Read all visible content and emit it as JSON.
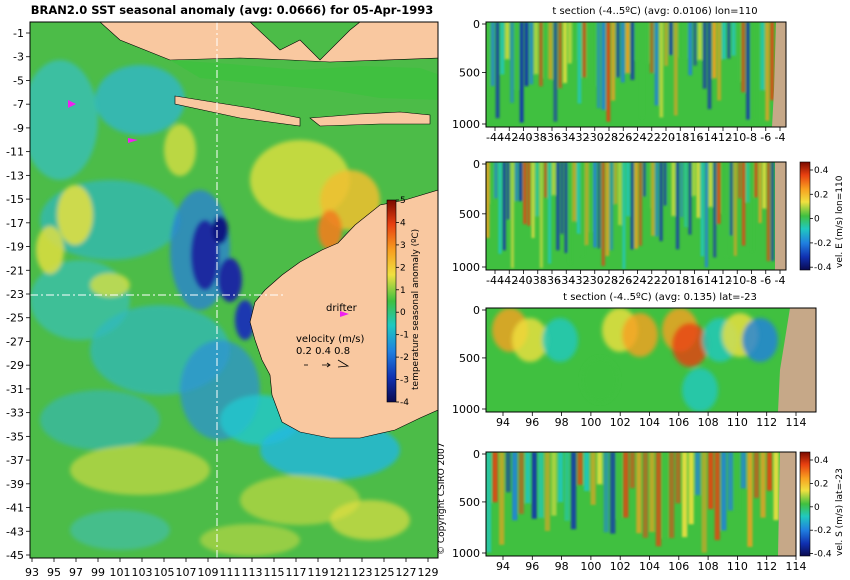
{
  "colors": {
    "land": "#f9c8a0",
    "seabed": "#c6a888",
    "background": "#ffffff"
  },
  "chart_data": [
    {
      "type": "heatmap",
      "title": "BRAN2.0 SST seasonal anomaly (avg: 0.0666) for 05-Apr-1993",
      "ylim": [
        -45,
        0
      ],
      "xlim": [
        93,
        130
      ],
      "y_ticks": [
        "-1",
        "-3",
        "-5",
        "-7",
        "-9",
        "-11",
        "-13",
        "-15",
        "-17",
        "-19",
        "-21",
        "-23",
        "-25",
        "-27",
        "-29",
        "-31",
        "-33",
        "-35",
        "-37",
        "-39",
        "-41",
        "-43",
        "-45"
      ],
      "x_ticks": [
        "93",
        "95",
        "97",
        "99",
        "101",
        "103",
        "105",
        "107",
        "109",
        "111",
        "113",
        "115",
        "117",
        "119",
        "121",
        "123",
        "125",
        "127",
        "129"
      ],
      "colorbar": {
        "label": "temperature seasonal anomaly (ºC)",
        "range": [
          -4,
          5
        ],
        "ticks": [
          "5",
          "4",
          "3",
          "2",
          "1",
          "0",
          "-1",
          "-2",
          "-3",
          "-4"
        ]
      },
      "annotations": {
        "drifter": "drifter",
        "velocity_label": "velocity (m/s)",
        "velocity_scale": "0.2 0.4 0.8",
        "copyright": "© Copyright CSIRO 2007"
      },
      "section_lines": {
        "lon": 110,
        "lat": -23
      }
    },
    {
      "type": "heatmap",
      "title": "t section (-4..5ºC) (avg: 0.0106) lon=110",
      "xlabel": "",
      "ylabel": "",
      "x_ticks": [
        "-44",
        "-42",
        "-40",
        "-38",
        "-36",
        "-34",
        "-32",
        "-30",
        "-28",
        "-26",
        "-24",
        "-22",
        "-20",
        "-18",
        "-16",
        "-14",
        "-12",
        "-10",
        "-8",
        "-6",
        "-4"
      ],
      "y_ticks": [
        "0",
        "500",
        "1000"
      ]
    },
    {
      "type": "heatmap",
      "title": "",
      "x_ticks": [
        "-44",
        "-42",
        "-40",
        "-38",
        "-36",
        "-34",
        "-32",
        "-30",
        "-28",
        "-26",
        "-24",
        "-22",
        "-20",
        "-18",
        "-16",
        "-14",
        "-12",
        "-10",
        "-8",
        "-6",
        "-4"
      ],
      "y_ticks": [
        "0",
        "500",
        "1000"
      ],
      "colorbar": {
        "label": "vel. E (m/s) lon=110",
        "ticks": [
          "0.4",
          "0.2",
          "0",
          "-0.2",
          "-0.4"
        ]
      }
    },
    {
      "type": "heatmap",
      "title": "t section (-4..5ºC) (avg: 0.135) lat=-23",
      "x_ticks": [
        "94",
        "96",
        "98",
        "100",
        "102",
        "104",
        "106",
        "108",
        "110",
        "112",
        "114"
      ],
      "y_ticks": [
        "0",
        "500",
        "1000"
      ]
    },
    {
      "type": "heatmap",
      "title": "",
      "x_ticks": [
        "94",
        "96",
        "98",
        "100",
        "102",
        "104",
        "106",
        "108",
        "110",
        "112",
        "114"
      ],
      "y_ticks": [
        "0",
        "500",
        "1000"
      ],
      "colorbar": {
        "label": "vel. S (m/s) lat=-23",
        "ticks": [
          "0.4",
          "0.2",
          "0",
          "-0.2",
          "-0.4"
        ]
      }
    }
  ]
}
